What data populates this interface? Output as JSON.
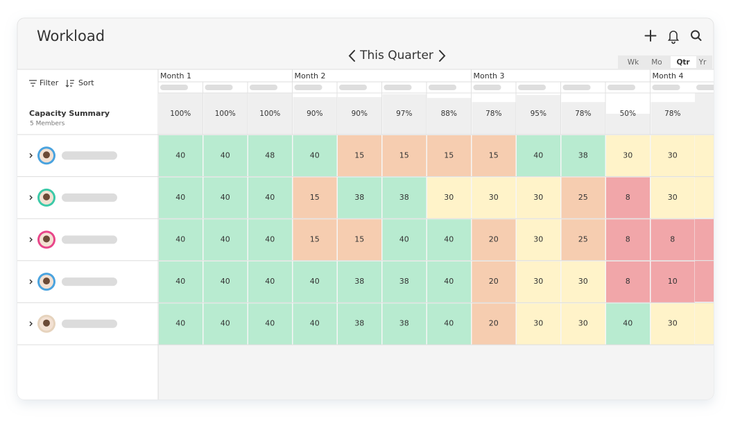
{
  "header": {
    "title": "Workload",
    "period": "This Quarter",
    "views": [
      "Wk",
      "Mo",
      "Qtr",
      "Yr"
    ],
    "active_view": "Qtr"
  },
  "toolbar": {
    "filter": "Filter",
    "sort": "Sort"
  },
  "summary": {
    "title": "Capacity Summary",
    "members": "5 Members"
  },
  "months": [
    {
      "label": "Month 1",
      "capacity": [
        {
          "value": 100,
          "label": "100%"
        },
        {
          "value": 100,
          "label": "100%"
        },
        {
          "value": 100,
          "label": "100%"
        }
      ]
    },
    {
      "label": "Month 2",
      "capacity": [
        {
          "value": 90,
          "label": "90%"
        },
        {
          "value": 90,
          "label": "90%"
        },
        {
          "value": 97,
          "label": "97%"
        },
        {
          "value": 88,
          "label": "88%"
        }
      ]
    },
    {
      "label": "Month 3",
      "capacity": [
        {
          "value": 78,
          "label": "78%"
        },
        {
          "value": 95,
          "label": "95%"
        },
        {
          "value": 78,
          "label": "78%"
        },
        {
          "value": 50,
          "label": "50%"
        }
      ]
    },
    {
      "label": "Month 4",
      "capacity": [
        {
          "value": 78,
          "label": "78%"
        }
      ]
    }
  ],
  "rows": [
    {
      "ring": "#4aa3df",
      "hours": [
        40,
        40,
        48,
        40,
        15,
        15,
        15,
        15,
        40,
        38,
        30,
        30
      ]
    },
    {
      "ring": "#3cc9a8",
      "hours": [
        40,
        40,
        40,
        15,
        38,
        38,
        30,
        30,
        30,
        25,
        8,
        30
      ]
    },
    {
      "ring": "#e8468a",
      "hours": [
        40,
        40,
        40,
        15,
        15,
        40,
        40,
        20,
        30,
        25,
        8,
        8
      ]
    },
    {
      "ring": "#4aa3df",
      "hours": [
        40,
        40,
        40,
        40,
        38,
        38,
        40,
        20,
        30,
        30,
        8,
        10
      ]
    },
    {
      "ring": "#e6d3bd",
      "hours": [
        40,
        40,
        40,
        40,
        38,
        38,
        40,
        20,
        30,
        30,
        40,
        30
      ]
    }
  ],
  "color_scale": [
    {
      "min": 35,
      "color": "#b8ebd0"
    },
    {
      "min": 30,
      "color": "#fff3c9"
    },
    {
      "min": 12,
      "color": "#f6cdb0"
    },
    {
      "min": 0,
      "color": "#f1a6a9"
    }
  ]
}
